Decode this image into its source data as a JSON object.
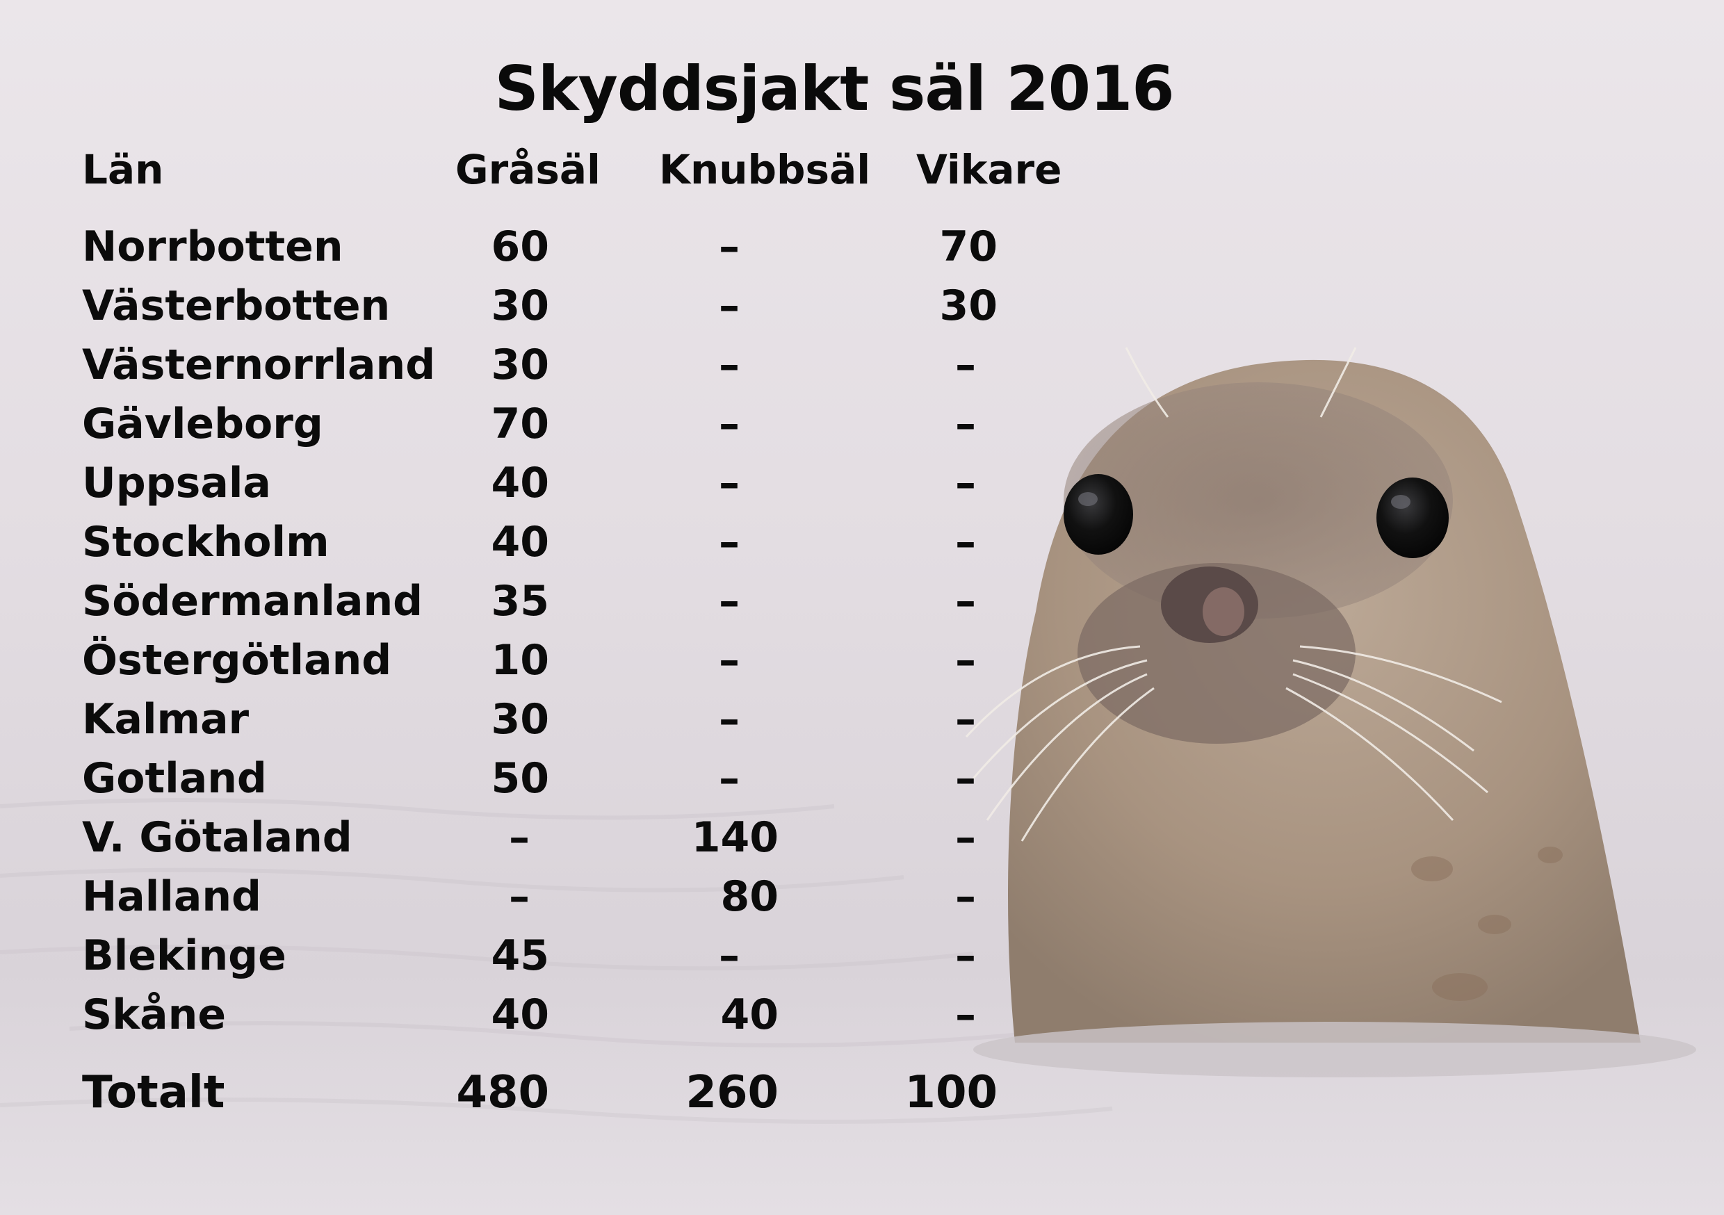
{
  "chart_data": {
    "type": "table",
    "title": "Skyddsjakt säl 2016",
    "columns": [
      "Län",
      "Gråsäl",
      "Knubbsäl",
      "Vikare"
    ],
    "rows": [
      {
        "lan": "Norrbotten",
        "grasal": "60",
        "knubbsal": "–",
        "vikare": "70"
      },
      {
        "lan": "Västerbotten",
        "grasal": "30",
        "knubbsal": "–",
        "vikare": "30"
      },
      {
        "lan": "Västernorrland",
        "grasal": "30",
        "knubbsal": "–",
        "vikare": "–"
      },
      {
        "lan": "Gävleborg",
        "grasal": "70",
        "knubbsal": "–",
        "vikare": "–"
      },
      {
        "lan": "Uppsala",
        "grasal": "40",
        "knubbsal": "–",
        "vikare": "–"
      },
      {
        "lan": "Stockholm",
        "grasal": "40",
        "knubbsal": "–",
        "vikare": "–"
      },
      {
        "lan": "Södermanland",
        "grasal": "35",
        "knubbsal": "–",
        "vikare": "–"
      },
      {
        "lan": "Östergötland",
        "grasal": "10",
        "knubbsal": "–",
        "vikare": "–"
      },
      {
        "lan": "Kalmar",
        "grasal": "30",
        "knubbsal": "–",
        "vikare": "–"
      },
      {
        "lan": "Gotland",
        "grasal": "50",
        "knubbsal": "–",
        "vikare": "–"
      },
      {
        "lan": "V. Götaland",
        "grasal": "–",
        "knubbsal": "140",
        "vikare": "–"
      },
      {
        "lan": "Halland",
        "grasal": "–",
        "knubbsal": "80",
        "vikare": "–"
      },
      {
        "lan": "Blekinge",
        "grasal": "45",
        "knubbsal": "–",
        "vikare": "–"
      },
      {
        "lan": "Skåne",
        "grasal": "40",
        "knubbsal": "40",
        "vikare": "–"
      }
    ],
    "total": {
      "lan": "Totalt",
      "grasal": "480",
      "knubbsal": "260",
      "vikare": "100"
    }
  }
}
